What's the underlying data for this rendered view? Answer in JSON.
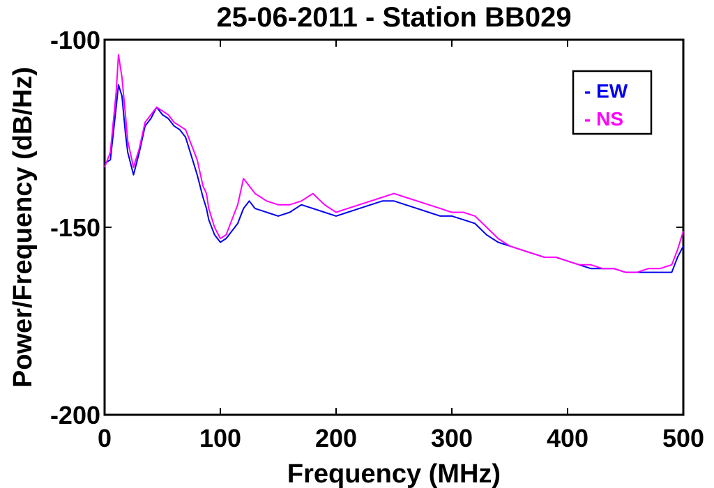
{
  "chart_data": {
    "type": "line",
    "title": "25-06-2011 - Station BB029",
    "xlabel": "Frequency (MHz)",
    "ylabel": "Power/Frequency (dB/Hz)",
    "xlim": [
      0,
      500
    ],
    "ylim": [
      -200,
      -100
    ],
    "xticks": [
      0,
      100,
      200,
      300,
      400,
      500
    ],
    "yticks": [
      -200,
      -150,
      -100
    ],
    "xtick_labels": [
      "0",
      "100",
      "200",
      "300",
      "400",
      "500"
    ],
    "ytick_labels": [
      "-200",
      "-150",
      "-100"
    ],
    "grid": false,
    "legend_position": "top-right",
    "legend": [
      "- EW",
      "- NS"
    ],
    "series": [
      {
        "name": "EW",
        "color": "#0000ee",
        "x": [
          0,
          5,
          10,
          12,
          15,
          18,
          20,
          25,
          30,
          35,
          40,
          45,
          50,
          55,
          60,
          65,
          70,
          75,
          80,
          85,
          88,
          90,
          95,
          100,
          105,
          110,
          115,
          120,
          125,
          130,
          140,
          150,
          160,
          170,
          180,
          190,
          200,
          210,
          220,
          230,
          240,
          250,
          260,
          270,
          280,
          290,
          300,
          310,
          320,
          330,
          340,
          350,
          360,
          370,
          380,
          390,
          400,
          410,
          420,
          430,
          440,
          450,
          460,
          470,
          480,
          490,
          495,
          500
        ],
        "y": [
          -133,
          -132,
          -118,
          -112,
          -115,
          -125,
          -130,
          -136,
          -130,
          -123,
          -121,
          -118,
          -120,
          -121,
          -123,
          -124,
          -126,
          -131,
          -136,
          -142,
          -145,
          -148,
          -152,
          -154,
          -153,
          -151,
          -149,
          -145,
          -143,
          -145,
          -146,
          -147,
          -146,
          -144,
          -145,
          -146,
          -147,
          -146,
          -145,
          -144,
          -143,
          -143,
          -144,
          -145,
          -146,
          -147,
          -147,
          -148,
          -149,
          -152,
          -154,
          -155,
          -156,
          -157,
          -158,
          -158,
          -159,
          -160,
          -161,
          -161,
          -161,
          -162,
          -162,
          -162,
          -162,
          -162,
          -158,
          -155
        ]
      },
      {
        "name": "NS",
        "color": "#ff00ff",
        "x": [
          0,
          5,
          10,
          12,
          15,
          18,
          20,
          25,
          30,
          35,
          40,
          45,
          50,
          55,
          60,
          65,
          70,
          75,
          80,
          85,
          88,
          90,
          95,
          100,
          105,
          110,
          115,
          120,
          125,
          130,
          140,
          150,
          160,
          170,
          180,
          190,
          200,
          210,
          220,
          230,
          240,
          250,
          260,
          270,
          280,
          290,
          300,
          310,
          320,
          330,
          340,
          350,
          360,
          370,
          380,
          390,
          400,
          410,
          420,
          430,
          440,
          450,
          460,
          470,
          480,
          490,
          495,
          500
        ],
        "y": [
          -134,
          -130,
          -114,
          -104,
          -110,
          -120,
          -127,
          -134,
          -129,
          -122,
          -120,
          -118,
          -119,
          -120,
          -122,
          -123,
          -124,
          -128,
          -132,
          -139,
          -141,
          -145,
          -150,
          -153,
          -152,
          -148,
          -144,
          -137,
          -139,
          -141,
          -143,
          -144,
          -144,
          -143,
          -141,
          -144,
          -146,
          -145,
          -144,
          -143,
          -142,
          -141,
          -142,
          -143,
          -144,
          -145,
          -146,
          -146,
          -147,
          -150,
          -153,
          -155,
          -156,
          -157,
          -158,
          -158,
          -159,
          -160,
          -160,
          -161,
          -161,
          -162,
          -162,
          -161,
          -161,
          -160,
          -156,
          -151
        ]
      }
    ]
  }
}
